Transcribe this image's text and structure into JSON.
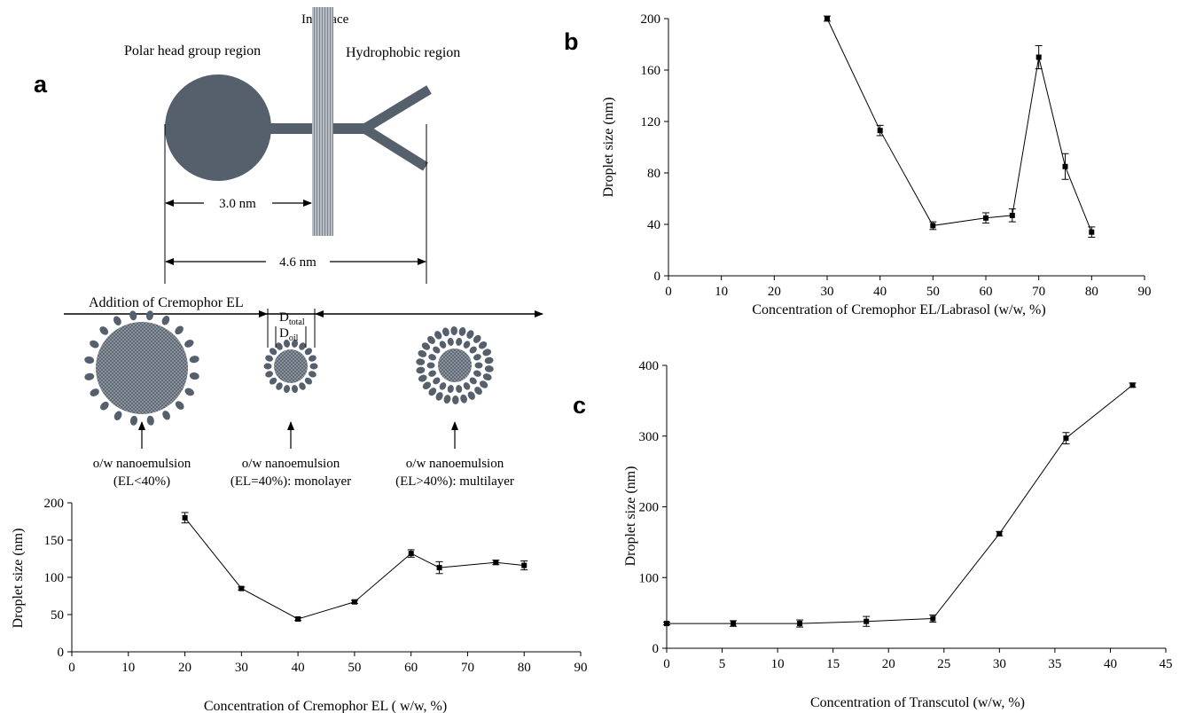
{
  "schematic": {
    "panel_letter": "a",
    "molecule": {
      "head_label": "Polar head group region",
      "interface_label": "Interface",
      "tail_label": "Hydrophobic region",
      "dim_head_label": "3.0 nm",
      "dim_total_label": "4.6 nm"
    },
    "arrow_label": "Addition of Cremophor EL",
    "droplets": [
      {
        "line1": "o/w nanoemulsion",
        "line2": "(EL<40%)"
      },
      {
        "line1": "o/w nanoemulsion",
        "line2": "(EL=40%): monolayer"
      },
      {
        "line1": "o/w nanoemulsion",
        "line2": "(EL>40%): multilayer"
      }
    ],
    "d_total": {
      "base": "D",
      "sub": "total"
    },
    "d_oil": {
      "base": "D",
      "sub": "oil"
    },
    "colors": {
      "surfactant": "#56606c",
      "core": "#6b7580",
      "interface": "#9aa0a8"
    }
  },
  "panel_b_letter": "b",
  "panel_c_letter": "c",
  "chart_data": [
    {
      "id": "a",
      "type": "line",
      "xlabel": "Concentration of Cremophor EL ( w/w, %)",
      "ylabel": "Droplet size (nm)",
      "xlim": [
        0,
        90
      ],
      "ylim": [
        0,
        200
      ],
      "xticks": [
        0,
        10,
        20,
        30,
        40,
        50,
        60,
        70,
        80,
        90
      ],
      "yticks": [
        0,
        50,
        100,
        150,
        200
      ],
      "x": [
        20,
        30,
        40,
        50,
        60,
        65,
        75,
        80
      ],
      "y": [
        180,
        85,
        44,
        67,
        132,
        113,
        120,
        116
      ],
      "error": [
        7,
        2,
        2,
        2,
        5,
        8,
        3,
        6
      ]
    },
    {
      "id": "b",
      "type": "line",
      "xlabel": "Concentration of Cremophor EL/Labrasol (w/w, %)",
      "ylabel": "Droplet size (nm)",
      "xlim": [
        0,
        90
      ],
      "ylim": [
        0,
        200
      ],
      "xticks": [
        0,
        10,
        20,
        30,
        40,
        50,
        60,
        70,
        80,
        90
      ],
      "yticks": [
        0,
        40,
        80,
        120,
        160,
        200
      ],
      "x": [
        30,
        40,
        50,
        60,
        65,
        70,
        75,
        80
      ],
      "y": [
        200,
        113,
        39,
        45,
        47,
        170,
        85,
        34
      ],
      "error": [
        2,
        4,
        3,
        4,
        5,
        9,
        10,
        4
      ]
    },
    {
      "id": "c",
      "type": "line",
      "xlabel": "Concentration of Transcutol (w/w, %)",
      "ylabel": "Droplet size (nm)",
      "xlim": [
        0,
        45
      ],
      "ylim": [
        0,
        400
      ],
      "xticks": [
        0,
        5,
        10,
        15,
        20,
        25,
        30,
        35,
        40,
        45
      ],
      "yticks": [
        0,
        100,
        200,
        300,
        400
      ],
      "x": [
        0,
        6,
        12,
        18,
        24,
        30,
        36,
        42
      ],
      "y": [
        35,
        35,
        35,
        38,
        42,
        162,
        297,
        372
      ],
      "error": [
        2,
        4,
        5,
        7,
        5,
        3,
        8,
        3
      ]
    }
  ]
}
